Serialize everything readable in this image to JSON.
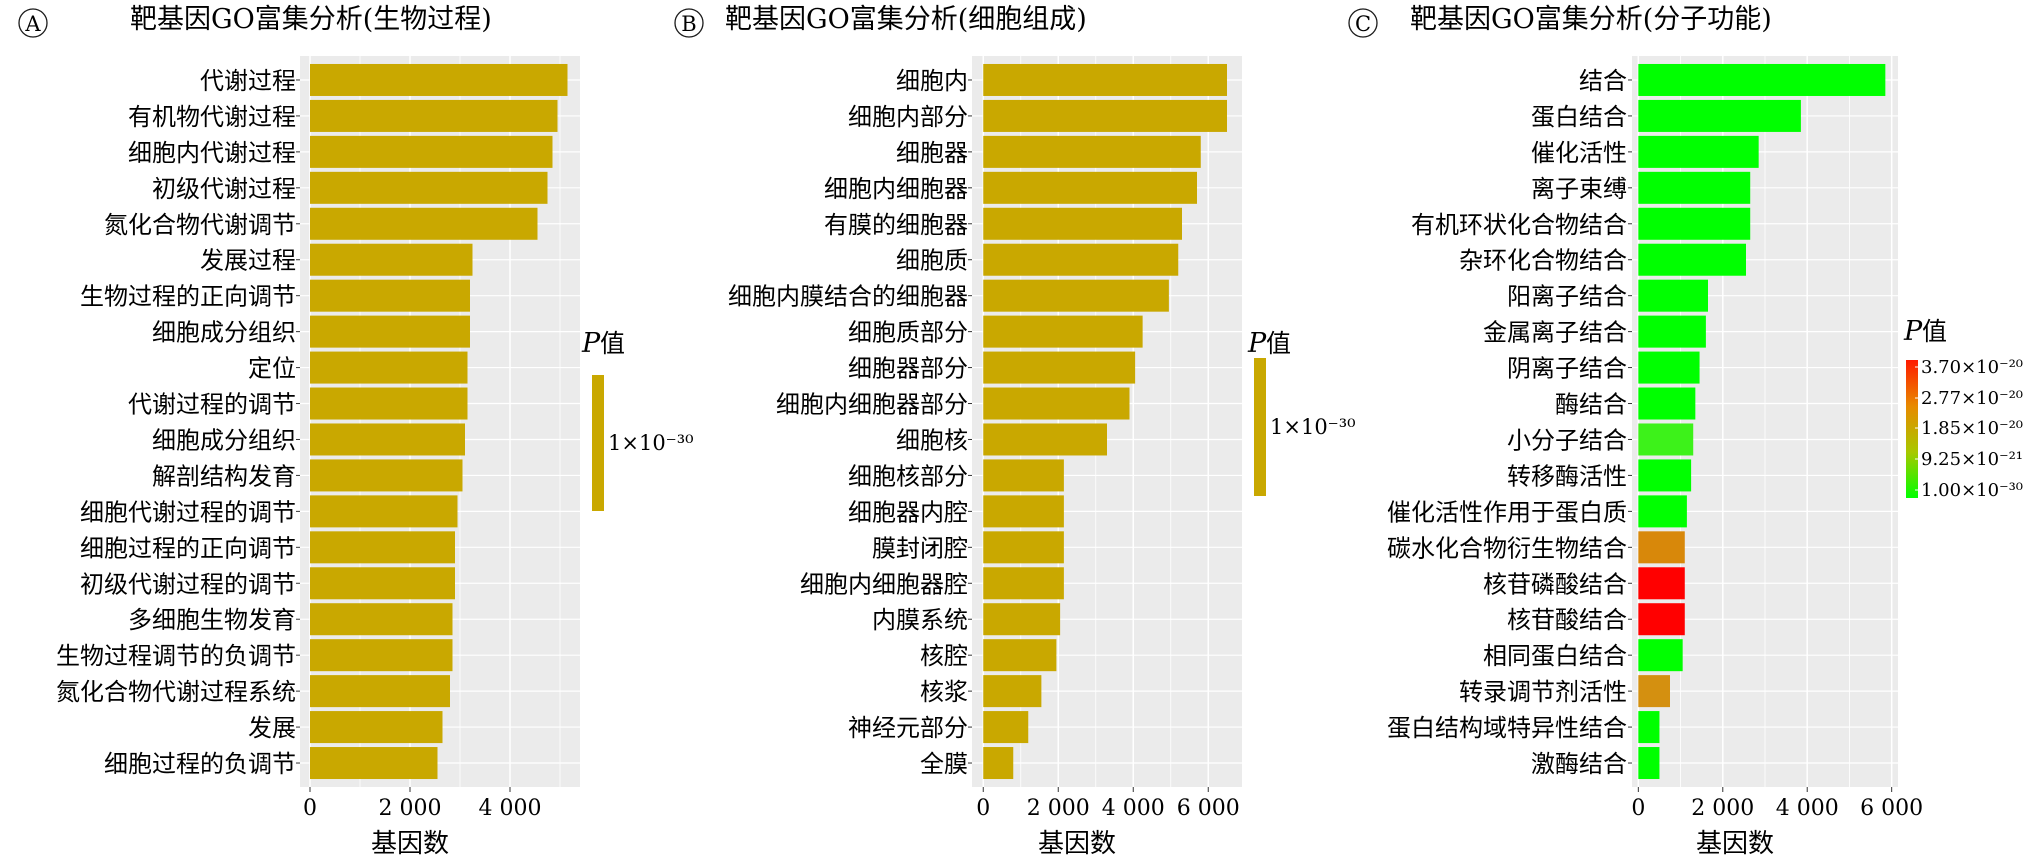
{
  "chart_data": [
    {
      "id": "A",
      "type": "bar",
      "orientation": "horizontal",
      "title": "靶基因GO富集分析(生物过程)",
      "xlabel": "基因数",
      "categories": [
        "代谢过程",
        "有机物代谢过程",
        "细胞内代谢过程",
        "初级代谢过程",
        "氮化合物代谢调节",
        "发展过程",
        "生物过程的正向调节",
        "细胞成分组织",
        "定位",
        "代谢过程的调节",
        "细胞成分组织",
        "解剖结构发育",
        "细胞代谢过程的调节",
        "细胞过程的正向调节",
        "初级代谢过程的调节",
        "多细胞生物发育",
        "生物过程调节的负调节",
        "氮化合物代谢过程系统",
        "发展",
        "细胞过程的负调节"
      ],
      "values": [
        5150,
        4950,
        4850,
        4750,
        4550,
        3250,
        3200,
        3200,
        3150,
        3150,
        3100,
        3050,
        2950,
        2900,
        2900,
        2850,
        2850,
        2800,
        2650,
        2550
      ],
      "xlim": [
        -200,
        5400
      ],
      "xticks": [
        0,
        2000,
        4000
      ],
      "xtick_labels": [
        "0",
        "2 000",
        "4 000"
      ],
      "legend": {
        "title": "P",
        "title_suffix": "值",
        "labels": [
          "1×10⁻³⁰"
        ]
      },
      "colors": {
        "bar": "#c9a800"
      }
    },
    {
      "id": "B",
      "type": "bar",
      "orientation": "horizontal",
      "title": "靶基因GO富集分析(细胞组成)",
      "xlabel": "基因数",
      "categories": [
        "细胞内",
        "细胞内部分",
        "细胞器",
        "细胞内细胞器",
        "有膜的细胞器",
        "细胞质",
        "细胞内膜结合的细胞器",
        "细胞质部分",
        "细胞器部分",
        "细胞内细胞器部分",
        "细胞核",
        "细胞核部分",
        "细胞器内腔",
        "膜封闭腔",
        "细胞内细胞器腔",
        "内膜系统",
        "核腔",
        "核浆",
        "神经元部分",
        "全膜"
      ],
      "values": [
        6500,
        6500,
        5800,
        5700,
        5300,
        5200,
        4950,
        4250,
        4050,
        3900,
        3300,
        2150,
        2150,
        2150,
        2150,
        2050,
        1950,
        1550,
        1200,
        800
      ],
      "xlim": [
        -300,
        6900
      ],
      "xticks": [
        0,
        2000,
        4000,
        6000
      ],
      "xtick_labels": [
        "0",
        "2 000",
        "4 000",
        "6 000"
      ],
      "legend": {
        "title": "P",
        "title_suffix": "值",
        "labels": [
          "1×10⁻³⁰"
        ]
      },
      "colors": {
        "bar": "#c9a800"
      }
    },
    {
      "id": "C",
      "type": "bar",
      "orientation": "horizontal",
      "title": "靶基因GO富集分析(分子功能)",
      "xlabel": "基因数",
      "categories": [
        "结合",
        "蛋白结合",
        "催化活性",
        "离子束缚",
        "有机环状化合物结合",
        "杂环化合物结合",
        "阳离子结合",
        "金属离子结合",
        "阴离子结合",
        "酶结合",
        "小分子结合",
        "转移酶活性",
        "催化活性作用于蛋白质",
        "碳水化合物衍生物结合",
        "核苷磷酸结合",
        "核苷酸结合",
        "相同蛋白结合",
        "转录调节剂活性",
        "蛋白结构域特异性结合",
        "激酶结合"
      ],
      "values": [
        5850,
        3850,
        2850,
        2650,
        2650,
        2550,
        1650,
        1600,
        1450,
        1350,
        1300,
        1250,
        1150,
        1100,
        1100,
        1100,
        1050,
        750,
        500,
        500
      ],
      "bar_colors": [
        "#00ff00",
        "#00ff00",
        "#00ff00",
        "#00ff00",
        "#00ff00",
        "#00ff00",
        "#00ff00",
        "#00ff00",
        "#00ff00",
        "#00ff00",
        "#3df21a",
        "#00ff00",
        "#00ff00",
        "#d8880a",
        "#ff0000",
        "#ff0000",
        "#00ff00",
        "#d49010",
        "#00ff00",
        "#00ff00"
      ],
      "xlim": [
        -150,
        6150
      ],
      "xticks": [
        0,
        2000,
        4000,
        6000
      ],
      "xtick_labels": [
        "0",
        "2 000",
        "4 000",
        "6 000"
      ],
      "legend": {
        "title": "P",
        "title_suffix": "值",
        "labels": [
          "3.70×10⁻²⁰",
          "2.77×10⁻²⁰",
          "1.85×10⁻²⁰",
          "9.25×10⁻²¹",
          "1.00×10⁻³⁰"
        ],
        "gradient": [
          "#ff1a00",
          "#e88a00",
          "#a8c800",
          "#00ff00"
        ]
      }
    }
  ],
  "panel_labels": [
    "A",
    "B",
    "C"
  ]
}
